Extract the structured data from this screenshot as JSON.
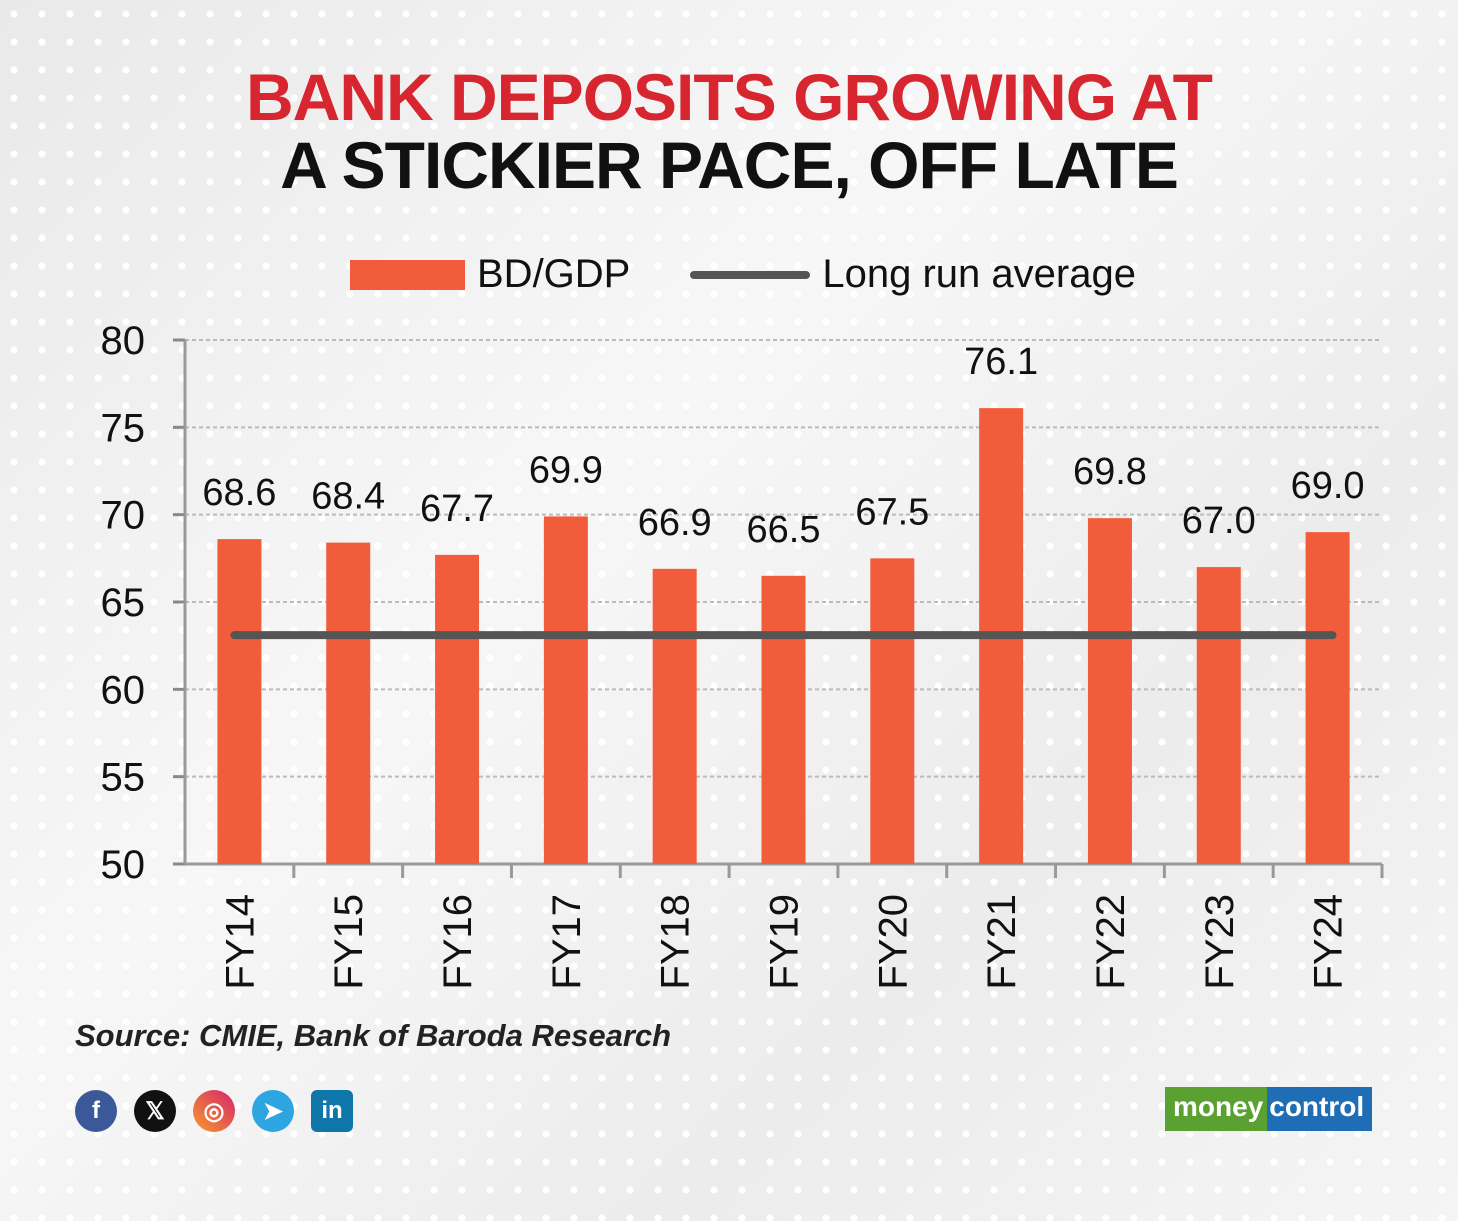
{
  "title_line1": "BANK DEPOSITS GROWING AT",
  "title_line2": "A STICKIER PACE, OFF LATE",
  "source": "Source: CMIE, Bank of Baroda Research",
  "social": [
    "facebook-icon",
    "x-icon",
    "instagram-icon",
    "telegram-icon",
    "linkedin-icon"
  ],
  "logo": {
    "part1": "money",
    "part2": "control"
  },
  "colors": {
    "bar": "#f15d3a",
    "line": "#555555",
    "title_red": "#d7262f"
  },
  "chart_data": {
    "type": "bar",
    "title": "BANK DEPOSITS GROWING AT A STICKIER PACE, OFF LATE",
    "categories": [
      "FY14",
      "FY15",
      "FY16",
      "FY17",
      "FY18",
      "FY19",
      "FY20",
      "FY21",
      "FY22",
      "FY23",
      "FY24"
    ],
    "series": [
      {
        "name": "BD/GDP",
        "type": "bar",
        "values": [
          68.6,
          68.4,
          67.7,
          69.9,
          66.9,
          66.5,
          67.5,
          76.1,
          69.8,
          67.0,
          69.0
        ],
        "labels": [
          "68.6",
          "68.4",
          "67.7",
          "69.9",
          "66.9",
          "66.5",
          "67.5",
          "76.1",
          "69.8",
          "67.0",
          "69.0"
        ]
      },
      {
        "name": "Long run average",
        "type": "line",
        "value": 63.1
      }
    ],
    "yticks": [
      "50",
      "55",
      "60",
      "65",
      "70",
      "75",
      "80"
    ],
    "ylim": [
      50,
      80
    ],
    "grid": true,
    "legend": "top"
  }
}
